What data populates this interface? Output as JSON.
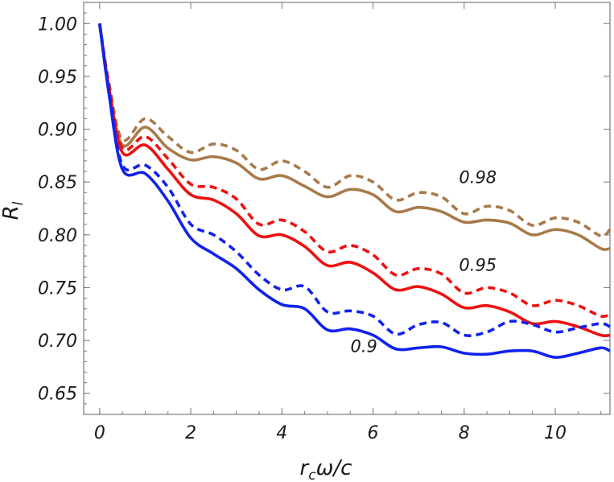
{
  "chart_data": {
    "type": "line",
    "xlabel": {
      "main": "r",
      "sub": "c",
      "rest": "ω/c"
    },
    "ylabel": {
      "main": "R",
      "sub": "l"
    },
    "xlim": [
      -0.35,
      11.2
    ],
    "ylim": [
      0.63,
      1.02
    ],
    "xticks": [
      0,
      2,
      4,
      6,
      8,
      10
    ],
    "xtick_labels": [
      "0",
      "2",
      "4",
      "6",
      "8",
      "10"
    ],
    "yticks": [
      0.65,
      0.7,
      0.75,
      0.8,
      0.85,
      0.9,
      0.95,
      1.0
    ],
    "ytick_labels": [
      "0.65",
      "0.70",
      "0.75",
      "0.80",
      "0.85",
      "0.90",
      "0.95",
      "1.00"
    ],
    "grid": false,
    "annotations": [
      {
        "text": "0.98",
        "x": 8.3,
        "y": 0.849
      },
      {
        "text": "0.95",
        "x": 8.3,
        "y": 0.766
      },
      {
        "text": "0.9",
        "x": 5.8,
        "y": 0.689
      }
    ],
    "series": [
      {
        "color": "#a87a4a",
        "dash": "solid",
        "x": [
          0,
          0.2,
          0.5,
          1.0,
          1.5,
          2.0,
          2.5,
          3.0,
          3.5,
          4.0,
          4.5,
          5.0,
          5.5,
          6.0,
          6.5,
          7.0,
          7.5,
          8.0,
          8.5,
          9.0,
          9.5,
          10.0,
          10.5,
          11.0,
          11.2
        ],
        "y": [
          1.0,
          0.94,
          0.885,
          0.902,
          0.882,
          0.871,
          0.874,
          0.868,
          0.853,
          0.856,
          0.846,
          0.836,
          0.843,
          0.838,
          0.822,
          0.826,
          0.822,
          0.812,
          0.814,
          0.811,
          0.8,
          0.805,
          0.8,
          0.787,
          0.787
        ]
      },
      {
        "color": "#a87a4a",
        "dash": "dashed",
        "x": [
          0,
          0.2,
          0.5,
          1.0,
          1.5,
          2.0,
          2.5,
          3.0,
          3.5,
          4.0,
          4.5,
          5.0,
          5.5,
          6.0,
          6.5,
          7.0,
          7.5,
          8.0,
          8.5,
          9.0,
          9.5,
          10.0,
          10.5,
          11.0,
          11.2
        ],
        "y": [
          1.0,
          0.945,
          0.89,
          0.91,
          0.893,
          0.878,
          0.886,
          0.88,
          0.862,
          0.87,
          0.86,
          0.845,
          0.856,
          0.85,
          0.833,
          0.84,
          0.836,
          0.82,
          0.827,
          0.823,
          0.809,
          0.816,
          0.812,
          0.799,
          0.805
        ]
      },
      {
        "color": "#ee1111",
        "dash": "solid",
        "x": [
          0,
          0.2,
          0.5,
          1.0,
          1.5,
          2.0,
          2.5,
          3.0,
          3.5,
          4.0,
          4.5,
          5.0,
          5.5,
          6.0,
          6.5,
          7.0,
          7.5,
          8.0,
          8.5,
          9.0,
          9.5,
          10.0,
          10.5,
          11.0,
          11.2
        ],
        "y": [
          1.0,
          0.94,
          0.878,
          0.885,
          0.862,
          0.838,
          0.833,
          0.82,
          0.799,
          0.8,
          0.789,
          0.771,
          0.774,
          0.764,
          0.748,
          0.751,
          0.744,
          0.731,
          0.733,
          0.727,
          0.716,
          0.718,
          0.713,
          0.705,
          0.705
        ]
      },
      {
        "color": "#ee1111",
        "dash": "dashed",
        "x": [
          0,
          0.2,
          0.5,
          1.0,
          1.5,
          2.0,
          2.5,
          3.0,
          3.5,
          4.0,
          4.5,
          5.0,
          5.5,
          6.0,
          6.5,
          7.0,
          7.5,
          8.0,
          8.5,
          9.0,
          9.5,
          10.0,
          10.5,
          11.0,
          11.2
        ],
        "y": [
          1.0,
          0.942,
          0.882,
          0.893,
          0.872,
          0.848,
          0.845,
          0.834,
          0.81,
          0.814,
          0.803,
          0.784,
          0.79,
          0.781,
          0.762,
          0.768,
          0.763,
          0.745,
          0.75,
          0.745,
          0.733,
          0.738,
          0.733,
          0.723,
          0.725
        ]
      },
      {
        "color": "#1122ee",
        "dash": "solid",
        "x": [
          0,
          0.2,
          0.5,
          1.0,
          1.5,
          2.0,
          2.5,
          3.0,
          3.5,
          4.0,
          4.5,
          5.0,
          5.5,
          6.0,
          6.5,
          7.0,
          7.5,
          8.0,
          8.5,
          9.0,
          9.5,
          10.0,
          10.5,
          11.0,
          11.2
        ],
        "y": [
          1.0,
          0.935,
          0.862,
          0.858,
          0.832,
          0.797,
          0.782,
          0.768,
          0.748,
          0.734,
          0.73,
          0.71,
          0.711,
          0.705,
          0.692,
          0.693,
          0.694,
          0.688,
          0.687,
          0.69,
          0.69,
          0.684,
          0.688,
          0.693,
          0.69
        ]
      },
      {
        "color": "#1122ee",
        "dash": "dashed",
        "x": [
          0,
          0.2,
          0.5,
          1.0,
          1.5,
          2.0,
          2.5,
          3.0,
          3.5,
          4.0,
          4.5,
          5.0,
          5.5,
          6.0,
          6.5,
          7.0,
          7.5,
          8.0,
          8.5,
          9.0,
          9.5,
          10.0,
          10.5,
          11.0,
          11.2
        ],
        "y": [
          1.0,
          0.938,
          0.866,
          0.866,
          0.845,
          0.81,
          0.8,
          0.784,
          0.762,
          0.748,
          0.751,
          0.727,
          0.728,
          0.723,
          0.706,
          0.715,
          0.717,
          0.705,
          0.708,
          0.718,
          0.715,
          0.708,
          0.712,
          0.716,
          0.713
        ]
      }
    ]
  }
}
